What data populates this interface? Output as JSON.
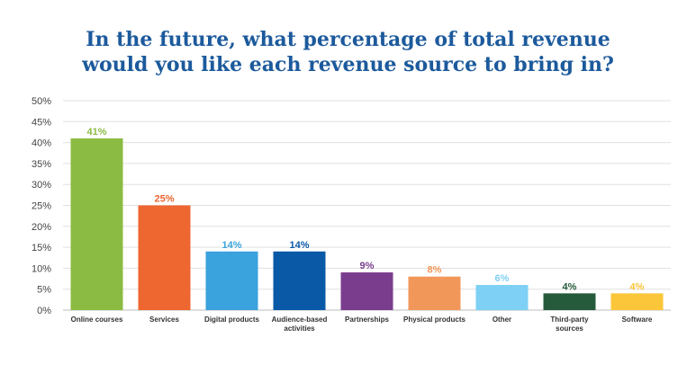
{
  "title_lines": [
    "In the future, what percentage of total revenue",
    "would you like each revenue source to bring in?"
  ],
  "chart_data": {
    "type": "bar",
    "title": "In the future, what percentage of total revenue would you like each revenue source to bring in?",
    "categories": [
      [
        "Online courses"
      ],
      [
        "Services"
      ],
      [
        "Digital products"
      ],
      [
        "Audience-based",
        "activities"
      ],
      [
        "Partnerships"
      ],
      [
        "Physical products"
      ],
      [
        "Other"
      ],
      [
        "Third-party",
        "sources"
      ],
      [
        "Software"
      ]
    ],
    "values": [
      41,
      25,
      14,
      14,
      9,
      8,
      6,
      4,
      4
    ],
    "value_labels": [
      "41%",
      "25%",
      "14%",
      "14%",
      "9%",
      "8%",
      "6%",
      "4%",
      "4%"
    ],
    "colors": [
      "#8cbb43",
      "#ee6630",
      "#3aa2dc",
      "#0a59a6",
      "#7a3d8e",
      "#f2975a",
      "#7ed0f4",
      "#255b3a",
      "#fcc63a"
    ],
    "label_colors": [
      "#8cbb43",
      "#ee6630",
      "#3aa2dc",
      "#0a59a6",
      "#7a3d8e",
      "#f2975a",
      "#7ed0f4",
      "#255b3a",
      "#fcc63a"
    ],
    "yticks": [
      "0%",
      "5%",
      "10%",
      "15%",
      "20%",
      "25%",
      "30%",
      "35%",
      "40%",
      "45%",
      "50%"
    ],
    "ylim": [
      0,
      50
    ],
    "grid": true,
    "xlabel": "",
    "ylabel": ""
  }
}
